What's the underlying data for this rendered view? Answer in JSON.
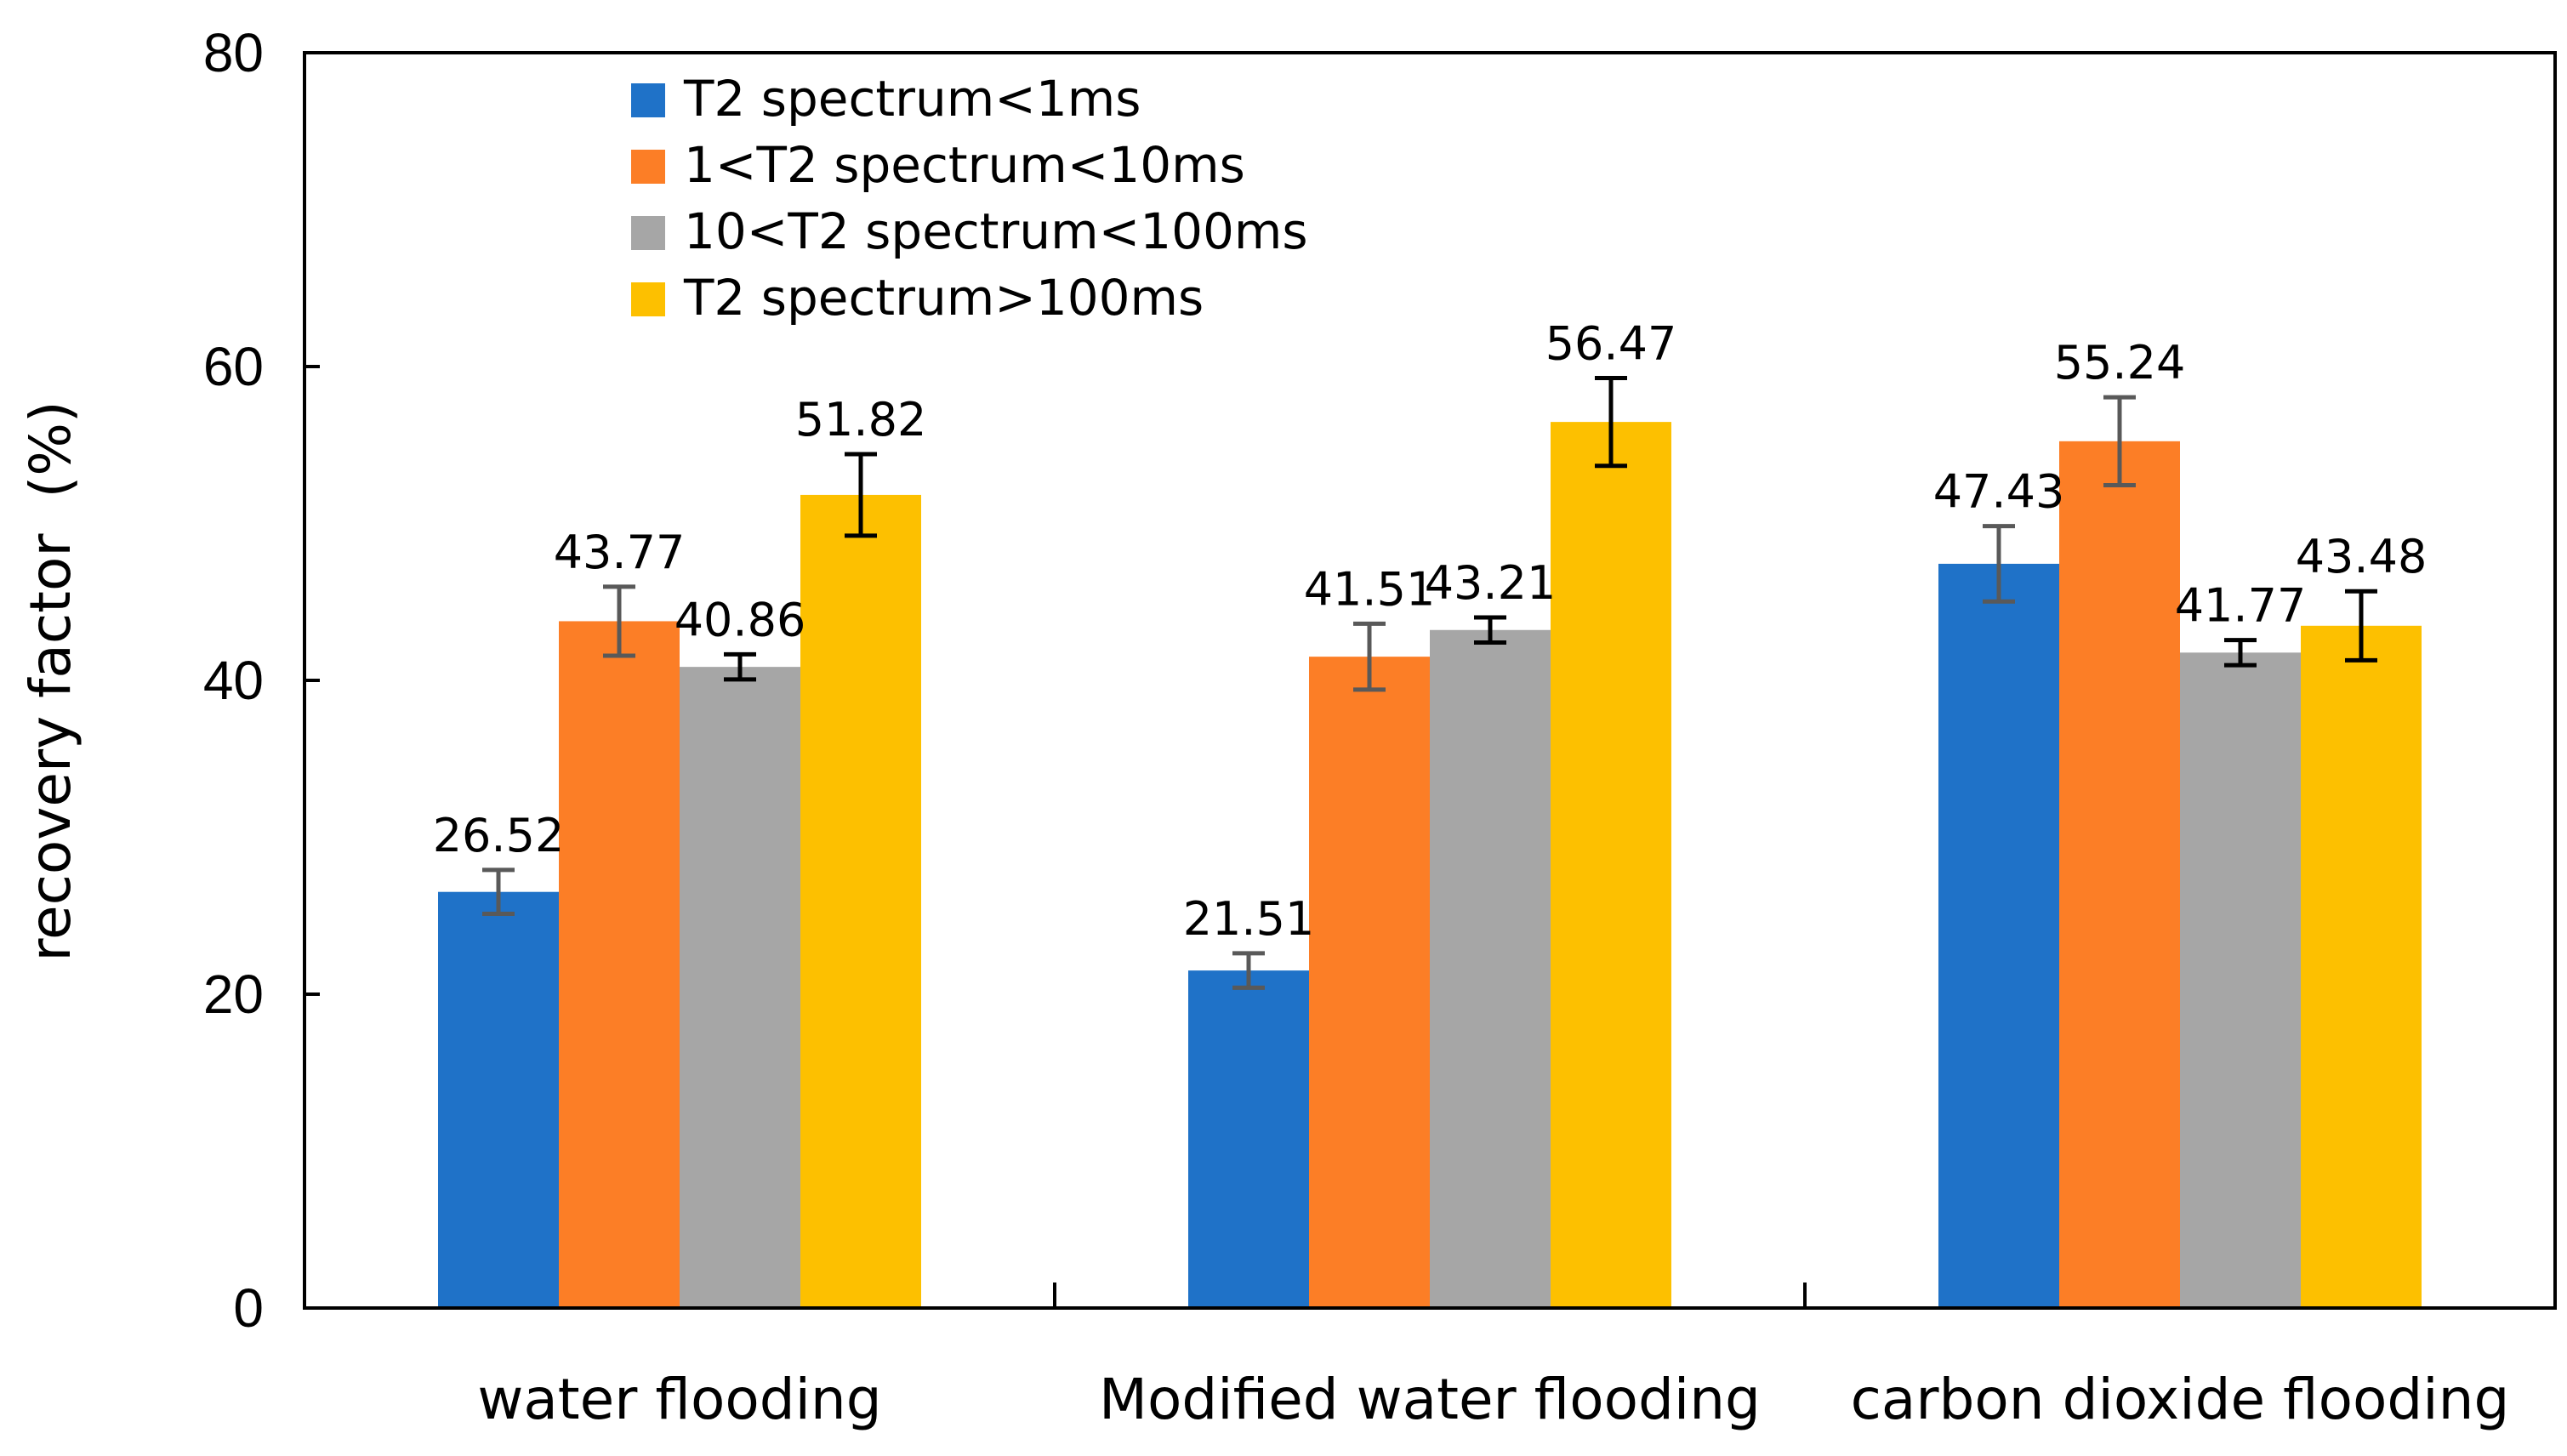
{
  "chart_data": {
    "type": "bar",
    "title": "",
    "xlabel": "",
    "ylabel": "recovery factor  (%)",
    "ylim": [
      0,
      80
    ],
    "yticks": [
      "0",
      "20",
      "40",
      "60",
      "80"
    ],
    "categories": [
      "water flooding",
      "Modified water flooding",
      "carbon dioxide flooding"
    ],
    "legend_position": "top-left",
    "grid": false,
    "series": [
      {
        "name": "T2 spectrum<1ms",
        "color": "#1f72c8",
        "values": [
          26.52,
          21.51,
          47.43
        ],
        "labels": [
          "26.52",
          "21.51",
          "47.43"
        ],
        "errors": [
          1.4,
          1.1,
          2.4
        ],
        "error_color": "#595959"
      },
      {
        "name": "1<T2 spectrum<10ms",
        "color": "#fc7e26",
        "values": [
          43.77,
          41.51,
          55.24
        ],
        "labels": [
          "43.77",
          "41.51",
          "55.24"
        ],
        "errors": [
          2.2,
          2.1,
          2.8
        ],
        "error_color": "#595959"
      },
      {
        "name": "10<T2 spectrum<100ms",
        "color": "#a6a6a6",
        "values": [
          40.86,
          43.21,
          41.77
        ],
        "labels": [
          "40.86",
          "43.21",
          "41.77"
        ],
        "errors": [
          0.8,
          0.8,
          0.8
        ],
        "error_color": "#000000"
      },
      {
        "name": "T2 spectrum>100ms",
        "color": "#fdc000",
        "values": [
          51.82,
          56.47,
          43.48
        ],
        "labels": [
          "51.82",
          "56.47",
          "43.48"
        ],
        "errors": [
          2.6,
          2.8,
          2.2
        ],
        "error_color": "#000000"
      }
    ]
  }
}
